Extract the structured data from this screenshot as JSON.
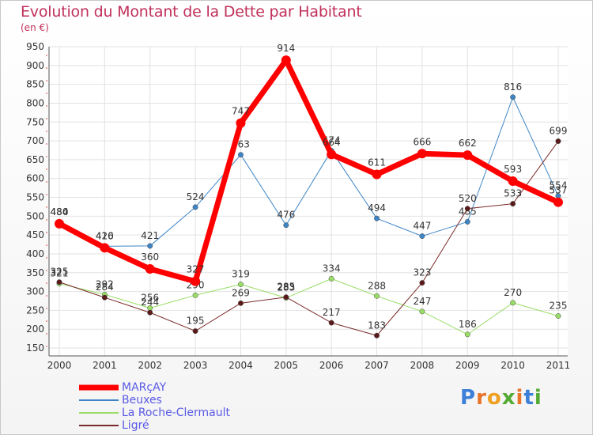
{
  "chart_data": {
    "type": "line",
    "title": "Evolution du Montant de la Dette par Habitant",
    "subtitle": "(en €)",
    "xlabel": "",
    "ylabel": "",
    "ylim": [
      150,
      950
    ],
    "yticks": [
      150,
      200,
      250,
      300,
      350,
      400,
      450,
      500,
      550,
      600,
      650,
      700,
      750,
      800,
      850,
      900,
      950
    ],
    "categories": [
      "2000",
      "2001",
      "2002",
      "2003",
      "2004",
      "2005",
      "2006",
      "2007",
      "2008",
      "2009",
      "2010",
      "2011"
    ],
    "grid": true,
    "legend_position": "bottom-left",
    "series": [
      {
        "name": "Beuxes",
        "color": "#3d85c6",
        "marker": "#3d85c6",
        "width": 1,
        "values": [
          484,
          420,
          421,
          524,
          663,
          476,
          674,
          494,
          447,
          485,
          816,
          554
        ]
      },
      {
        "name": "La Roche-Clermault",
        "color": "#99dd66",
        "marker": "#99dd66",
        "width": 1,
        "values": [
          321,
          292,
          256,
          290,
          319,
          283,
          334,
          288,
          247,
          186,
          270,
          235
        ]
      },
      {
        "name": "Ligré",
        "color": "#7a2a2a",
        "marker": "#5a1a1a",
        "width": 1,
        "values": [
          325,
          284,
          244,
          195,
          269,
          285,
          217,
          183,
          323,
          520,
          533,
          699
        ]
      },
      {
        "name": "MARçAY",
        "color": "#ff0000",
        "marker": "#ff0000",
        "width": 7,
        "values": [
          480,
          416,
          360,
          327,
          747,
          914,
          664,
          611,
          666,
          662,
          593,
          537
        ]
      }
    ]
  },
  "logo": {
    "letters": [
      "P",
      "r",
      "o",
      "x",
      "i",
      "t",
      "i"
    ],
    "colors": [
      "#3b7fd9",
      "#e8742a",
      "#f0a020",
      "#55aa33",
      "#e8742a",
      "#3b7fd9",
      "#55aa33"
    ]
  }
}
